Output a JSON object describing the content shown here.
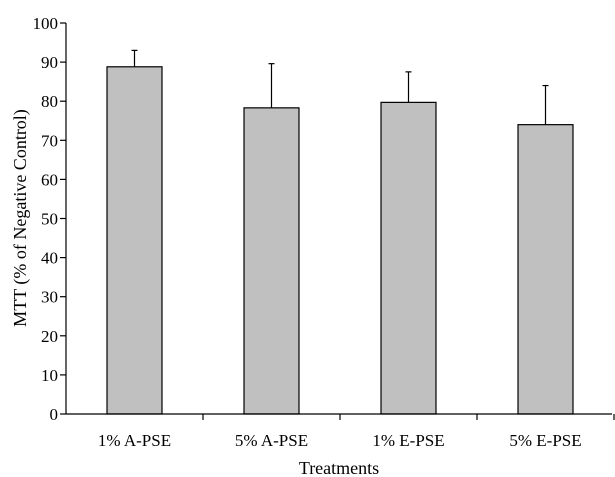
{
  "chart_data": {
    "type": "bar",
    "title": "",
    "xlabel": "Treatments",
    "ylabel": "MTT (% of Negative Control)",
    "categories": [
      "1% A-PSE",
      "5% A-PSE",
      "1% E-PSE",
      "5% E-PSE"
    ],
    "series": [
      {
        "values": [
          88.8,
          78.3,
          79.7,
          74.0
        ],
        "error_upper": [
          4.2,
          11.3,
          7.8,
          10.0
        ]
      }
    ],
    "ylim": [
      0,
      100
    ],
    "yticks": [
      0,
      10,
      20,
      30,
      40,
      50,
      60,
      70,
      80,
      90,
      100
    ],
    "grid": false,
    "legend": "none",
    "colors": {
      "bar_fill": "#c0c0c0",
      "bar_stroke": "#000000",
      "axis": "#000000"
    }
  }
}
